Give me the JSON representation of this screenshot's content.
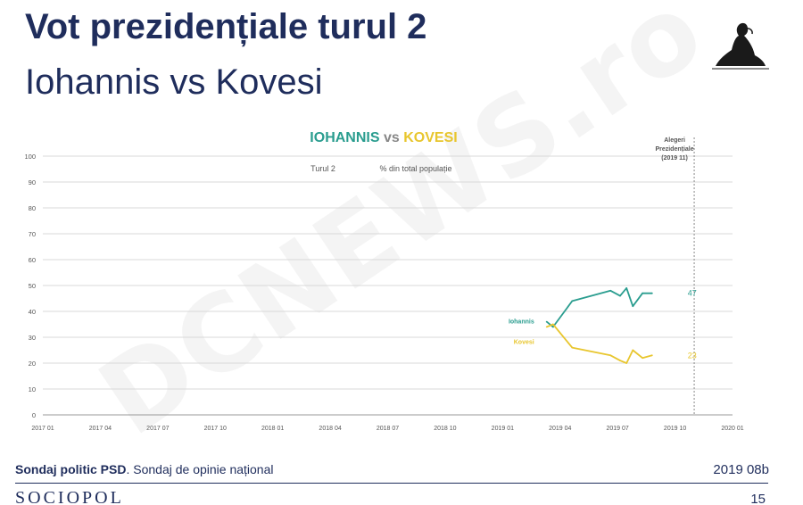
{
  "slide": {
    "title": "Vot prezidențiale turul 2",
    "subtitle": "Iohannis vs Kovesi",
    "watermark": "DCNEWS.ro"
  },
  "footer": {
    "source_bold": "Sondaj politic PSD",
    "source_rest": ". Sondaj de opinie național",
    "edition": "2019 08b",
    "brand": "SOCIOPOL",
    "page_number": "15"
  },
  "colors": {
    "iohannis": "#2a9d8f",
    "kovesi": "#e8c62e",
    "vs": "#888888",
    "grid": "#d9d9d9",
    "text": "#555555"
  },
  "chart_data": {
    "type": "line",
    "title_parts": [
      {
        "text": "IOHANNIS",
        "color": "#2a9d8f"
      },
      {
        "text": " vs ",
        "color": "#888888"
      },
      {
        "text": "KOVESI",
        "color": "#e8c62e"
      }
    ],
    "subtitle_left": "Turul 2",
    "subtitle_right": "% din total populație",
    "ylim": [
      0,
      100
    ],
    "yticks": [
      0,
      10,
      20,
      30,
      40,
      50,
      60,
      70,
      80,
      90,
      100
    ],
    "xlim": [
      "2017-01",
      "2020-01"
    ],
    "xticks": [
      "2017 01",
      "2017 04",
      "2017 07",
      "2017 10",
      "2018 01",
      "2018 04",
      "2018 07",
      "2018 10",
      "2019 01",
      "2019 04",
      "2019 07",
      "2019 10",
      "2020 01"
    ],
    "grid": true,
    "reference_line": {
      "date": "2019-11",
      "label_lines": [
        "Alegeri",
        "Prezidențiale",
        "(2019 11)"
      ]
    },
    "series": [
      {
        "name": "Iohannis",
        "color": "#2a9d8f",
        "end_label": "47",
        "points": [
          {
            "date": "2019-03-10",
            "value": 36
          },
          {
            "date": "2019-03-20",
            "value": 34
          },
          {
            "date": "2019-04-20",
            "value": 44
          },
          {
            "date": "2019-06-20",
            "value": 48
          },
          {
            "date": "2019-07-05",
            "value": 46
          },
          {
            "date": "2019-07-15",
            "value": 49
          },
          {
            "date": "2019-07-25",
            "value": 42
          },
          {
            "date": "2019-08-10",
            "value": 47
          },
          {
            "date": "2019-08-25",
            "value": 47
          }
        ]
      },
      {
        "name": "Kovesi",
        "color": "#e8c62e",
        "end_label": "23",
        "points": [
          {
            "date": "2019-03-10",
            "value": 34
          },
          {
            "date": "2019-03-20",
            "value": 35
          },
          {
            "date": "2019-04-20",
            "value": 26
          },
          {
            "date": "2019-06-20",
            "value": 23
          },
          {
            "date": "2019-07-05",
            "value": 21
          },
          {
            "date": "2019-07-15",
            "value": 20
          },
          {
            "date": "2019-07-25",
            "value": 25
          },
          {
            "date": "2019-08-10",
            "value": 22
          },
          {
            "date": "2019-08-25",
            "value": 23
          }
        ]
      }
    ]
  }
}
